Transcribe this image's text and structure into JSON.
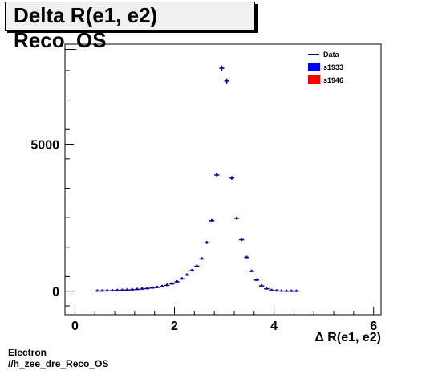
{
  "title": "Delta R(e1, e2) Reco_OS",
  "footer": {
    "line1": "Electron",
    "line2": "//h_zee_dre_Reco_OS"
  },
  "colors": {
    "data": "#0000a0",
    "s1933": "#0000ff",
    "s1946": "#ff0000"
  },
  "chart_data": {
    "type": "scatter",
    "title": "Delta R(e1, e2) Reco_OS",
    "xlabel": "Δ R(e1, e2)",
    "ylabel": "",
    "xlim": [
      -0.2,
      6.15
    ],
    "ylim": [
      -800,
      8400
    ],
    "x_ticks": [
      0,
      2,
      4,
      6
    ],
    "y_ticks": [
      0,
      5000
    ],
    "legend": [
      "Data",
      "s1933",
      "s1946"
    ],
    "legend_position": "top-right",
    "grid": false,
    "bin_width": 0.1,
    "x": [
      0.45,
      0.55,
      0.65,
      0.75,
      0.85,
      0.95,
      1.05,
      1.15,
      1.25,
      1.35,
      1.45,
      1.55,
      1.65,
      1.75,
      1.85,
      1.95,
      2.05,
      2.15,
      2.25,
      2.35,
      2.45,
      2.55,
      2.65,
      2.75,
      2.85,
      2.95,
      3.05,
      3.15,
      3.25,
      3.35,
      3.45,
      3.55,
      3.65,
      3.75,
      3.85,
      3.95,
      4.05,
      4.15,
      4.25,
      4.35,
      4.45
    ],
    "series": [
      {
        "name": "Data",
        "values": [
          5,
          8,
          12,
          18,
          25,
          32,
          40,
          50,
          60,
          75,
          90,
          110,
          130,
          160,
          200,
          250,
          320,
          420,
          550,
          700,
          850,
          1100,
          1650,
          2400,
          3950,
          7580,
          7150,
          3850,
          2480,
          1750,
          1150,
          680,
          380,
          180,
          80,
          30,
          12,
          5,
          2,
          1,
          0
        ]
      },
      {
        "name": "s1933",
        "values": [
          5,
          8,
          12,
          18,
          25,
          32,
          40,
          50,
          60,
          75,
          90,
          110,
          130,
          160,
          200,
          250,
          320,
          420,
          550,
          700,
          850,
          1100,
          1650,
          2400,
          3950,
          7580,
          7150,
          3850,
          2480,
          1750,
          1150,
          680,
          380,
          180,
          80,
          30,
          12,
          5,
          2,
          1,
          0
        ]
      },
      {
        "name": "s1946",
        "values": [
          5,
          8,
          12,
          18,
          25,
          32,
          40,
          50,
          60,
          75,
          90,
          110,
          130,
          160,
          200,
          250,
          320,
          420,
          550,
          700,
          850,
          1100,
          1650,
          2400,
          3950,
          7580,
          7150,
          3850,
          2480,
          1750,
          1150,
          680,
          380,
          180,
          80,
          30,
          12,
          5,
          2,
          1,
          0
        ]
      }
    ]
  }
}
